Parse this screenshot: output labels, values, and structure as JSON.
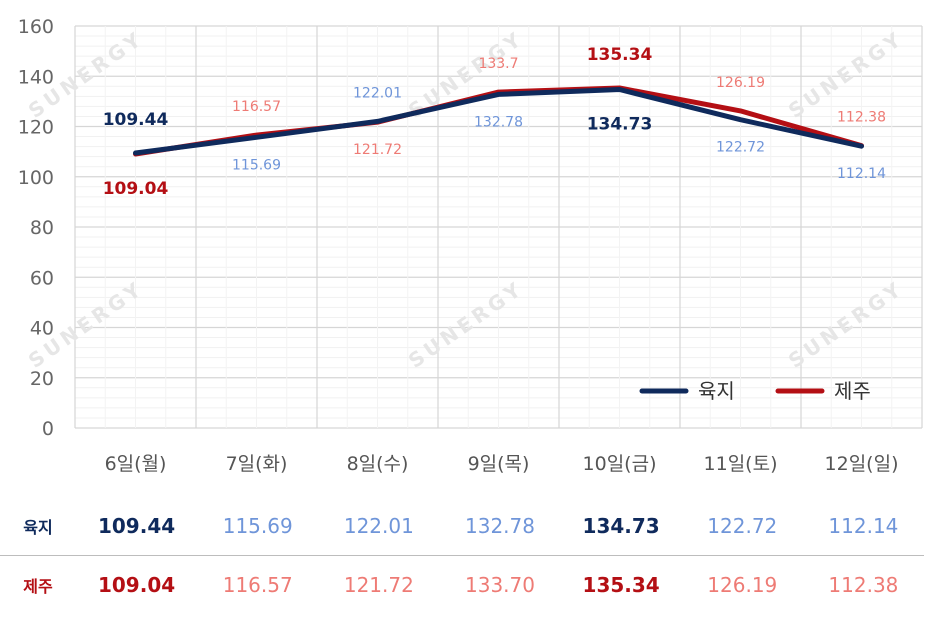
{
  "chart_data": {
    "type": "line",
    "categories": [
      "6일(월)",
      "7일(화)",
      "8일(수)",
      "9일(목)",
      "10일(금)",
      "11일(토)",
      "12일(일)"
    ],
    "ylim": [
      0,
      160
    ],
    "yticks": [
      0,
      20,
      40,
      60,
      80,
      100,
      120,
      140,
      160
    ],
    "grid": true,
    "legend": "bottom-right",
    "series": [
      {
        "name": "육지",
        "color": "#0f2a5c",
        "label_color": "#6f95d9",
        "values": [
          109.44,
          115.69,
          122.01,
          132.78,
          134.73,
          122.72,
          112.14
        ],
        "labels": [
          "109.44",
          "115.69",
          "122.01",
          "132.78",
          "134.73",
          "122.72",
          "112.14"
        ],
        "bold_labels": [
          0,
          4
        ]
      },
      {
        "name": "제주",
        "color": "#b40f14",
        "label_color": "#ee7b75",
        "values": [
          109.04,
          116.57,
          121.72,
          133.7,
          135.34,
          126.19,
          112.38
        ],
        "labels": [
          "109.04",
          "116.57",
          "121.72",
          "133.7",
          "135.34",
          "126.19",
          "112.38"
        ],
        "bold_labels": [
          0,
          4
        ]
      }
    ]
  },
  "table": {
    "rows": [
      {
        "label": "육지",
        "color": "#0f2a5c",
        "light_color": "#6f95d9",
        "bold": [
          0,
          4
        ],
        "cells": [
          "109.44",
          "115.69",
          "122.01",
          "132.78",
          "134.73",
          "122.72",
          "112.14"
        ]
      },
      {
        "label": "제주",
        "color": "#b40f14",
        "light_color": "#ee7b75",
        "bold": [
          0,
          4
        ],
        "cells": [
          "109.04",
          "116.57",
          "121.72",
          "133.70",
          "135.34",
          "126.19",
          "112.38"
        ]
      }
    ]
  },
  "watermark": "SUNERGY"
}
